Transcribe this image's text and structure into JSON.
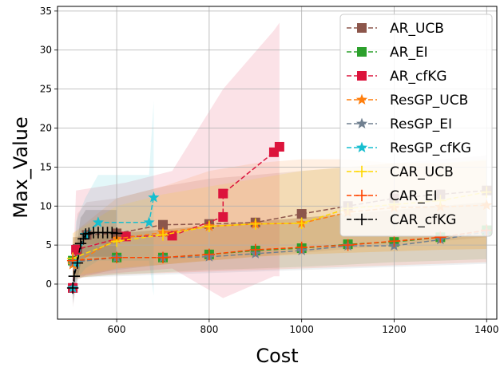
{
  "chart_data": {
    "type": "line",
    "xlabel": "Cost",
    "ylabel": "Max_Value",
    "xlim": [
      472,
      1422
    ],
    "ylim": [
      -4.5,
      35.6
    ],
    "xticks": [
      600,
      800,
      1000,
      1200,
      1400
    ],
    "yticks": [
      0,
      5,
      10,
      15,
      20,
      25,
      30,
      35
    ],
    "grid": true,
    "legend_position": "upper-right",
    "series": [
      {
        "name": "AR_UCB",
        "color": "#8c564b",
        "marker": "square",
        "x": [
          505,
          515,
          535,
          600,
          700,
          800,
          900,
          1000,
          1100,
          1200,
          1300,
          1400
        ],
        "y": [
          -0.5,
          4.5,
          6.3,
          6.5,
          7.6,
          7.7,
          7.9,
          9.0,
          10.0,
          11.0,
          11.5,
          12.0
        ],
        "band_lower": [
          -3.0,
          0.5,
          1.2,
          1.8,
          2.5,
          3.0,
          3.5,
          4.0,
          4.5,
          5.0,
          5.5,
          6.0
        ],
        "band_upper": [
          1.5,
          9.0,
          10.5,
          11.0,
          12.5,
          13.5,
          14.0,
          14.5,
          15.0,
          15.5,
          16.0,
          16.5
        ]
      },
      {
        "name": "AR_EI",
        "color": "#2ca02c",
        "marker": "square",
        "x": [
          505,
          600,
          700,
          800,
          900,
          1000,
          1100,
          1200,
          1300,
          1400
        ],
        "y": [
          3.0,
          3.4,
          3.4,
          3.8,
          4.3,
          4.6,
          5.1,
          5.4,
          6.0,
          6.9
        ],
        "band_lower": [
          0.8,
          1.2,
          1.5,
          1.8,
          2.0,
          2.2,
          2.5,
          2.8,
          3.0,
          3.2
        ],
        "band_upper": [
          6.0,
          6.5,
          7.0,
          7.5,
          8.0,
          8.5,
          9.0,
          9.5,
          10.0,
          10.5
        ]
      },
      {
        "name": "AR_cfKG",
        "color": "#dc143c",
        "marker": "square",
        "x": [
          505,
          512,
          620,
          720,
          830,
          830,
          940,
          952
        ],
        "y": [
          -0.5,
          4.4,
          6.1,
          6.2,
          8.6,
          11.6,
          16.9,
          17.6
        ],
        "band_lower": [
          -2.5,
          1.0,
          1.5,
          2.0,
          -1.8,
          -1.8,
          1.0,
          1.0
        ],
        "band_upper": [
          1.0,
          12.0,
          13.0,
          14.5,
          25.0,
          25.0,
          32.5,
          33.5
        ]
      },
      {
        "name": "ResGP_UCB",
        "color": "#ff7f0e",
        "marker": "star",
        "x": [
          505,
          600,
          700,
          800,
          900,
          1000,
          1100,
          1200,
          1300,
          1400
        ],
        "y": [
          2.5,
          5.8,
          6.6,
          7.4,
          7.7,
          7.8,
          9.2,
          9.8,
          9.9,
          10.1
        ],
        "band_lower": [
          0.5,
          2.0,
          2.5,
          3.0,
          3.5,
          3.8,
          4.0,
          4.2,
          4.4,
          4.5
        ],
        "band_upper": [
          6.5,
          11.0,
          12.5,
          14.5,
          15.5,
          16.0,
          16.0,
          15.5,
          15.5,
          15.8
        ]
      },
      {
        "name": "ResGP_EI",
        "color": "#708090",
        "marker": "star",
        "x": [
          505,
          600,
          700,
          800,
          900,
          1000,
          1100,
          1200,
          1300,
          1400
        ],
        "y": [
          2.8,
          3.4,
          3.4,
          3.5,
          3.9,
          4.3,
          4.9,
          4.9,
          5.7,
          6.7
        ],
        "band_lower": [
          0.8,
          1.0,
          1.2,
          1.4,
          1.6,
          1.8,
          2.0,
          2.2,
          2.4,
          2.6
        ],
        "band_upper": [
          6.0,
          6.5,
          7.0,
          7.5,
          8.0,
          8.5,
          9.0,
          9.5,
          10.0,
          10.5
        ]
      },
      {
        "name": "ResGP_cfKG",
        "color": "#17becf",
        "marker": "star",
        "x": [
          505,
          512,
          532,
          560,
          670,
          680
        ],
        "y": [
          -0.5,
          2.8,
          6.3,
          7.9,
          7.9,
          11.1
        ],
        "band_lower": [
          -2.5,
          0.5,
          2.0,
          3.0,
          3.0,
          -1.5
        ],
        "band_upper": [
          1.0,
          8.0,
          11.0,
          14.0,
          14.0,
          23.5
        ]
      },
      {
        "name": "CAR_UCB",
        "color": "#ffd700",
        "marker": "plus",
        "x": [
          505,
          600,
          700,
          800,
          900,
          1000,
          1100,
          1200,
          1300,
          1400
        ],
        "y": [
          3.3,
          5.5,
          6.3,
          7.4,
          7.7,
          7.8,
          9.7,
          10.2,
          10.7,
          11.8
        ],
        "band_lower": [
          1.0,
          2.0,
          2.5,
          3.0,
          3.5,
          3.8,
          4.0,
          4.2,
          4.4,
          4.5
        ],
        "band_upper": [
          6.5,
          10.0,
          11.5,
          12.5,
          13.5,
          14.5,
          15.0,
          15.5,
          15.5,
          16.0
        ]
      },
      {
        "name": "CAR_EI",
        "color": "#ff4500",
        "marker": "plus",
        "x": [
          505,
          600,
          700,
          800,
          900,
          1000,
          1100,
          1200,
          1300,
          1400
        ],
        "y": [
          3.0,
          3.4,
          3.4,
          3.8,
          4.4,
          4.7,
          5.0,
          5.5,
          6.0,
          6.9
        ],
        "band_lower": [
          0.8,
          1.2,
          1.4,
          1.6,
          1.8,
          2.0,
          2.2,
          2.4,
          2.6,
          2.8
        ],
        "band_upper": [
          6.0,
          6.5,
          7.0,
          7.5,
          8.0,
          8.5,
          9.0,
          9.5,
          10.0,
          10.5
        ]
      },
      {
        "name": "CAR_cfKG",
        "color": "#000000",
        "marker": "plus",
        "x": [
          505,
          508,
          515,
          522,
          528,
          533,
          540,
          550,
          560,
          570,
          580,
          590,
          600
        ],
        "y": [
          -0.5,
          1.0,
          2.7,
          5.2,
          5.8,
          6.4,
          6.5,
          6.6,
          6.6,
          6.6,
          6.6,
          6.6,
          6.5
        ],
        "band_lower": [
          -2.0,
          -1.0,
          0.5,
          2.5,
          3.0,
          3.5,
          3.5,
          3.5,
          3.5,
          3.5,
          3.5,
          3.5,
          3.5
        ],
        "band_upper": [
          1.0,
          3.5,
          5.5,
          8.5,
          9.0,
          9.5,
          9.5,
          9.5,
          9.5,
          9.5,
          9.5,
          9.5,
          9.5
        ]
      }
    ]
  }
}
